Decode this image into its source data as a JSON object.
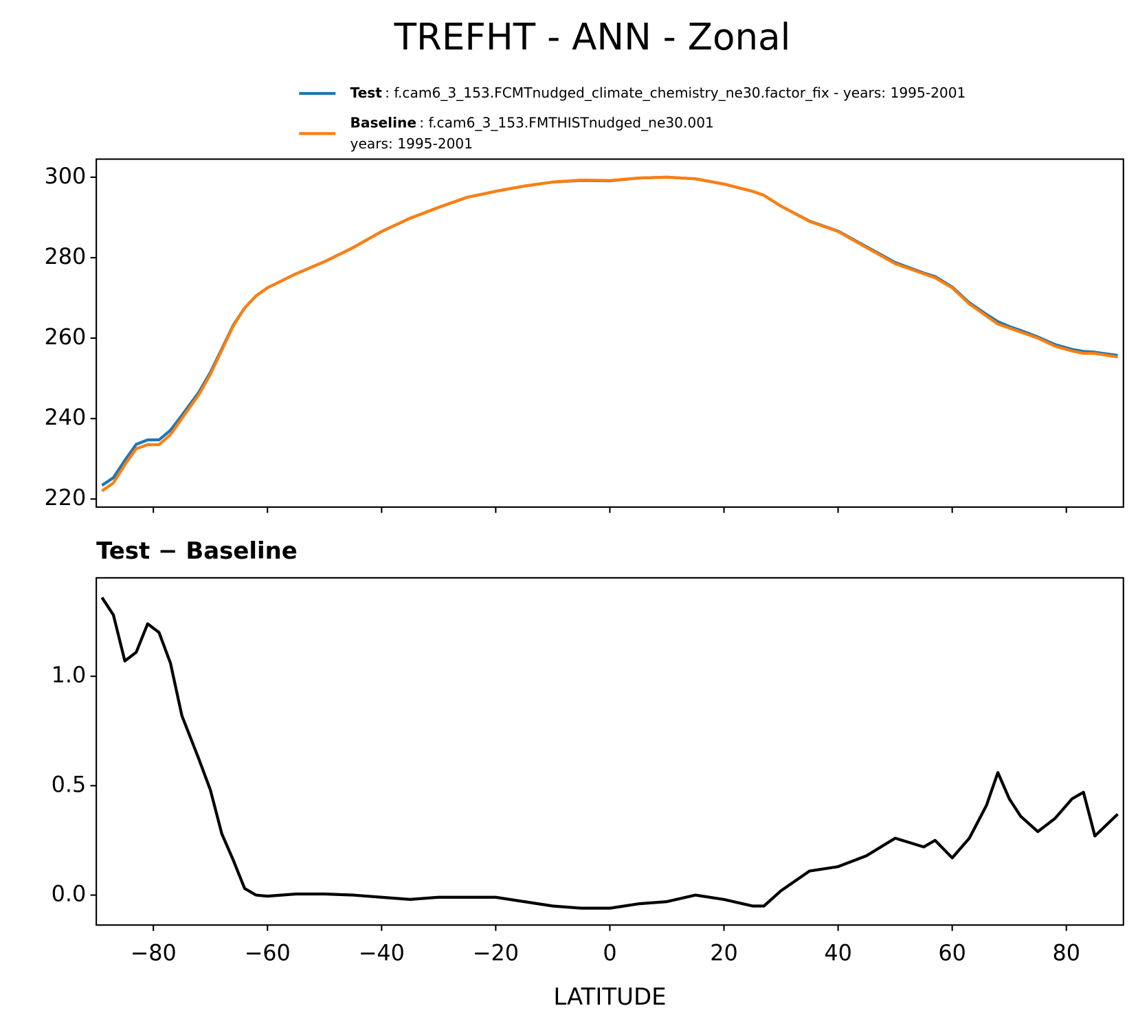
{
  "chart_data": [
    {
      "type": "line",
      "title": "TREFHT - ANN - Zonal",
      "x": [
        -89,
        -87,
        -85,
        -83,
        -81,
        -79,
        -77,
        -75,
        -72,
        -70,
        -68,
        -66,
        -64,
        -62,
        -60,
        -55,
        -50,
        -45,
        -40,
        -35,
        -30,
        -25,
        -20,
        -15,
        -10,
        -5,
        0,
        5,
        10,
        15,
        20,
        25,
        27,
        30,
        35,
        40,
        45,
        50,
        55,
        57,
        60,
        63,
        66,
        68,
        70,
        72,
        75,
        78,
        81,
        83,
        85,
        89
      ],
      "series": [
        {
          "name": "Test",
          "label": ": f.cam6_3_153.FCMTnudged_climate_chemistry_ne30.factor_fix - years: 1995-2001",
          "color": "#1f77b4",
          "values": [
            223.4,
            225.3,
            229.6,
            233.6,
            234.7,
            234.7,
            237.1,
            240.8,
            246.6,
            251.5,
            257.3,
            263.2,
            267.5,
            270.5,
            272.5,
            276,
            279,
            282.5,
            286.5,
            289.8,
            292.5,
            295,
            296.5,
            297.8,
            298.8,
            299.2,
            299.1,
            299.8,
            300,
            299.6,
            298.3,
            296.5,
            295.5,
            292.8,
            289.1,
            286.6,
            282.7,
            278.8,
            276.2,
            275.3,
            272.7,
            268.8,
            265.9,
            264.1,
            262.9,
            261.9,
            260.3,
            258.4,
            257.2,
            256.7,
            256.5,
            255.7
          ]
        },
        {
          "name": "Baseline",
          "label": ": f.cam6_3_153.FMTHISTnudged_ne30.001",
          "label2": "years: 1995-2001",
          "color": "#ff7f0e",
          "values": [
            222,
            224,
            228.5,
            232.5,
            233.5,
            233.5,
            236,
            240,
            246,
            251,
            257,
            263,
            267.5,
            270.5,
            272.5,
            276,
            279,
            282.5,
            286.5,
            289.8,
            292.5,
            295,
            296.5,
            297.8,
            298.8,
            299.3,
            299.2,
            299.8,
            300,
            299.6,
            298.3,
            296.5,
            295.5,
            292.8,
            289,
            286.5,
            282.5,
            278.5,
            276,
            275,
            272.5,
            268.5,
            265.5,
            263.5,
            262.5,
            261.5,
            260,
            258,
            256.8,
            256.2,
            256.2,
            255.3
          ]
        }
      ],
      "xlim": [
        -90,
        90
      ],
      "xticks": [
        -80,
        -60,
        -40,
        -20,
        0,
        20,
        40,
        60,
        80
      ],
      "ylim": [
        218,
        304.5
      ],
      "yticks": [
        220,
        240,
        260,
        280,
        300
      ]
    },
    {
      "type": "line",
      "title": "Test − Baseline",
      "xlabel": "LATITUDE",
      "x": [
        -89,
        -87,
        -85,
        -83,
        -81,
        -79,
        -77,
        -75,
        -72,
        -70,
        -68,
        -66,
        -64,
        -62,
        -60,
        -55,
        -50,
        -45,
        -40,
        -35,
        -30,
        -25,
        -20,
        -15,
        -10,
        -5,
        0,
        5,
        10,
        15,
        20,
        25,
        27,
        30,
        35,
        40,
        45,
        50,
        55,
        57,
        60,
        63,
        66,
        68,
        70,
        72,
        75,
        78,
        81,
        83,
        85,
        89
      ],
      "series": [
        {
          "color": "#000000",
          "values": [
            1.36,
            1.28,
            1.07,
            1.11,
            1.24,
            1.2,
            1.06,
            0.82,
            0.62,
            0.48,
            0.28,
            0.16,
            0.03,
            0.0,
            -0.005,
            0.005,
            0.005,
            0.0,
            -0.01,
            -0.02,
            -0.01,
            -0.01,
            -0.01,
            -0.03,
            -0.05,
            -0.06,
            -0.06,
            -0.04,
            -0.03,
            0.0,
            -0.02,
            -0.05,
            -0.05,
            0.02,
            0.11,
            0.13,
            0.18,
            0.26,
            0.22,
            0.25,
            0.17,
            0.26,
            0.41,
            0.56,
            0.44,
            0.36,
            0.29,
            0.35,
            0.44,
            0.47,
            0.27,
            0.37
          ]
        }
      ],
      "xlim": [
        -90,
        90
      ],
      "xticks": [
        {
          "value": -80,
          "label": "−80"
        },
        {
          "value": -60,
          "label": "−60"
        },
        {
          "value": -40,
          "label": "−40"
        },
        {
          "value": -20,
          "label": "−20"
        },
        0,
        20,
        40,
        60,
        80
      ],
      "ylim": [
        -0.137,
        1.45
      ],
      "yticks": [
        {
          "value": 0,
          "label": "0.0"
        },
        {
          "value": 0.5,
          "label": "0.5"
        },
        {
          "value": 1,
          "label": "1.0"
        }
      ]
    }
  ]
}
